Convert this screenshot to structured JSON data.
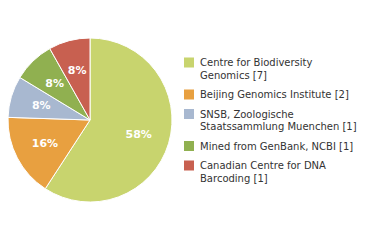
{
  "chart_data": {
    "type": "pie",
    "categories": [
      "Centre for Biodiversity\nGenomics [7]",
      "Beijing Genomics Institute [2]",
      "SNSB, Zoologische\nStaatssammlung Muenchen [1]",
      "Mined from GenBank, NCBI [1]",
      "Canadian Centre for DNA\nBarcoding [1]"
    ],
    "values": [
      58,
      16,
      8,
      8,
      8
    ],
    "value_labels": [
      "58%",
      "16%",
      "8%",
      "8%",
      "8%"
    ],
    "colors": [
      "#c8d46e",
      "#e8a040",
      "#a8b8d0",
      "#90b050",
      "#c86050"
    ],
    "data_labels": true,
    "legend": "right"
  }
}
